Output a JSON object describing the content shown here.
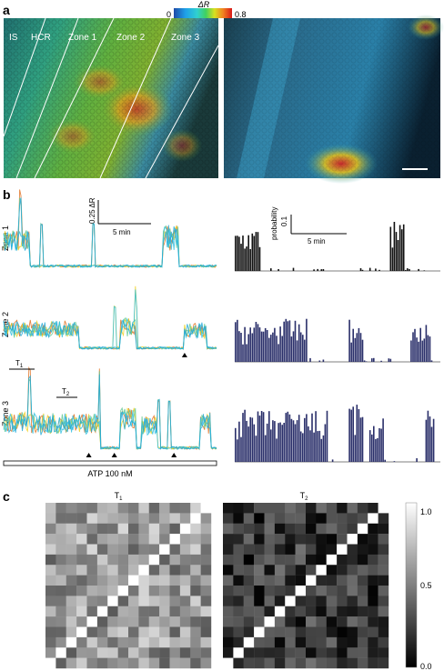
{
  "panel_labels": {
    "a": "a",
    "b": "b",
    "c": "c"
  },
  "colorbar": {
    "min": "0",
    "max": "0.8",
    "title": "ΔR"
  },
  "image_zones": [
    "IS",
    "HCR",
    "Zone 1",
    "Zone 2",
    "Zone 3"
  ],
  "trace_rows": [
    {
      "label": "Zone 1",
      "arrows": []
    },
    {
      "label": "Zone 2",
      "arrows": [
        0.85
      ]
    },
    {
      "label": "Zone 3",
      "arrows": [
        0.4,
        0.52,
        0.8
      ]
    }
  ],
  "trace_scale": {
    "amplitude": "0.25 ΔR",
    "time": "5 min"
  },
  "prob_scale": {
    "amplitude": "0.1",
    "ylabel": "probability",
    "time": "5 min"
  },
  "intervals": {
    "t1": "T",
    "t1_sub": "1",
    "t2": "T",
    "t2_sub": "2"
  },
  "stimulus": "ATP 100 nM",
  "matrices": {
    "left_title": "T",
    "left_sub": "1",
    "right_title": "T",
    "right_sub": "2",
    "size": 16
  },
  "matrix_colorbar": {
    "ticks": [
      "1.0",
      "0.5",
      "0.0"
    ]
  },
  "colors": {
    "trace": [
      "#e07020",
      "#f0d020",
      "#60c890",
      "#30c0e0",
      "#20a8d8"
    ],
    "hist_zone1": "#111111",
    "hist_zone23": "#2a2f6a"
  }
}
